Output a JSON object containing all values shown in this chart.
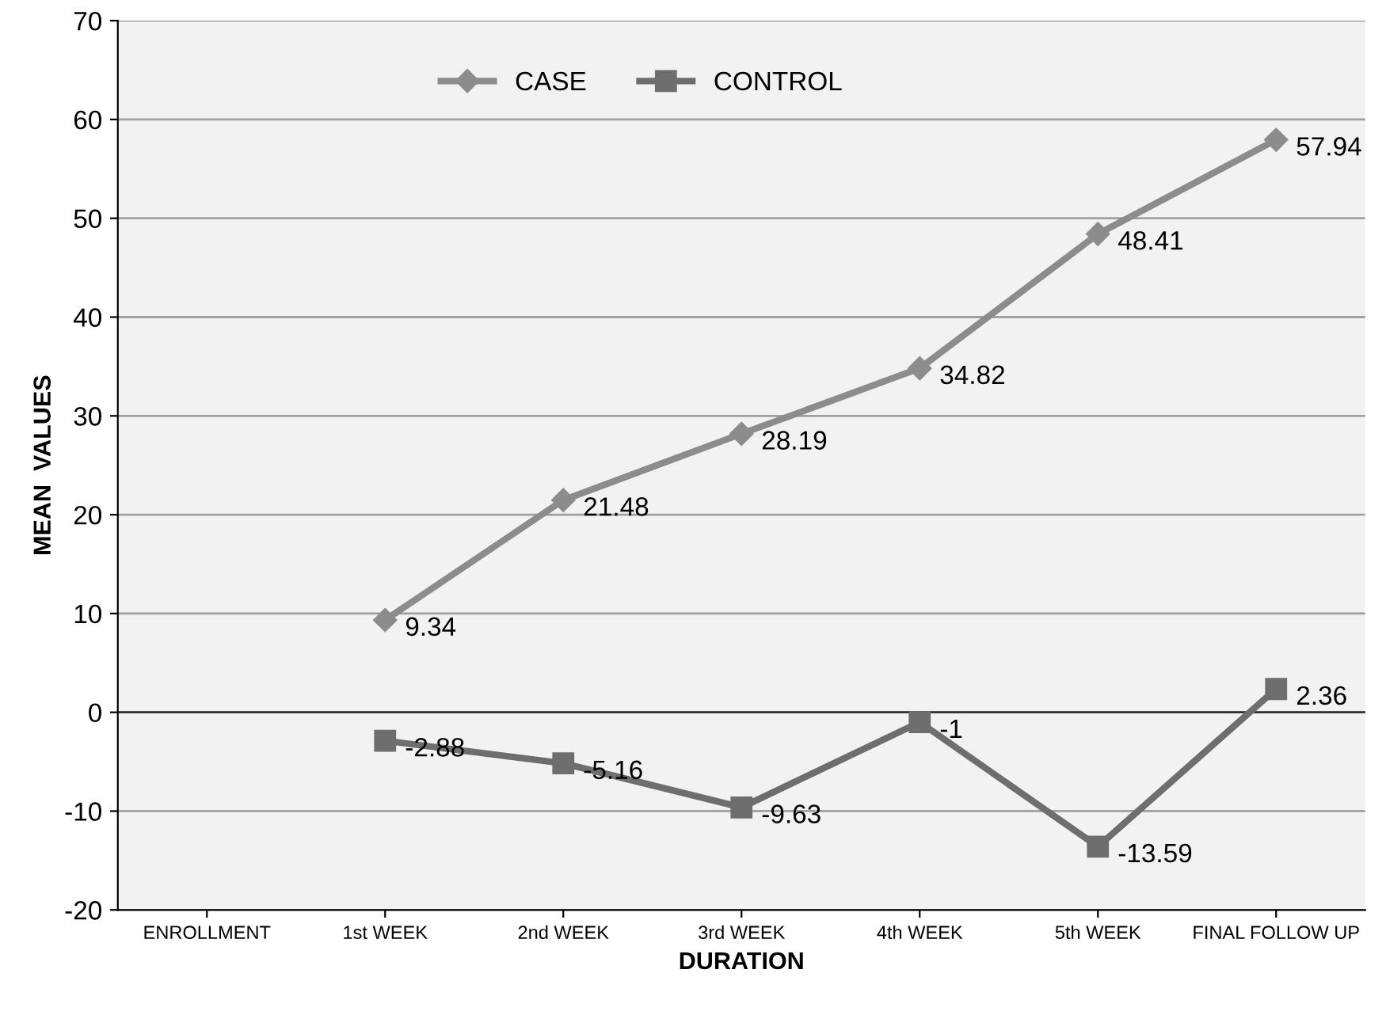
{
  "chart_data": {
    "type": "line",
    "xlabel": "DURATION",
    "ylabel": "MEAN  VALUES",
    "categories": [
      "ENROLLMENT",
      "1st WEEK",
      "2nd WEEK",
      "3rd WEEK",
      "4th WEEK",
      "5th WEEK",
      "FINAL FOLLOW UP"
    ],
    "series": [
      {
        "name": "CASE",
        "color": "#8c8c8c",
        "marker": "diamond",
        "values": [
          null,
          9.34,
          21.48,
          28.19,
          34.82,
          48.41,
          57.94
        ]
      },
      {
        "name": "CONTROL",
        "color": "#6e6e6e",
        "marker": "square",
        "values": [
          null,
          -2.88,
          -5.16,
          -9.63,
          -1,
          -13.59,
          2.36
        ]
      }
    ],
    "ylim": [
      -20,
      70
    ],
    "yticks": [
      -20,
      -10,
      0,
      10,
      20,
      30,
      40,
      50,
      60,
      70
    ],
    "grid": "y",
    "legend": "top",
    "data_labels": true,
    "line_style": "solid"
  }
}
